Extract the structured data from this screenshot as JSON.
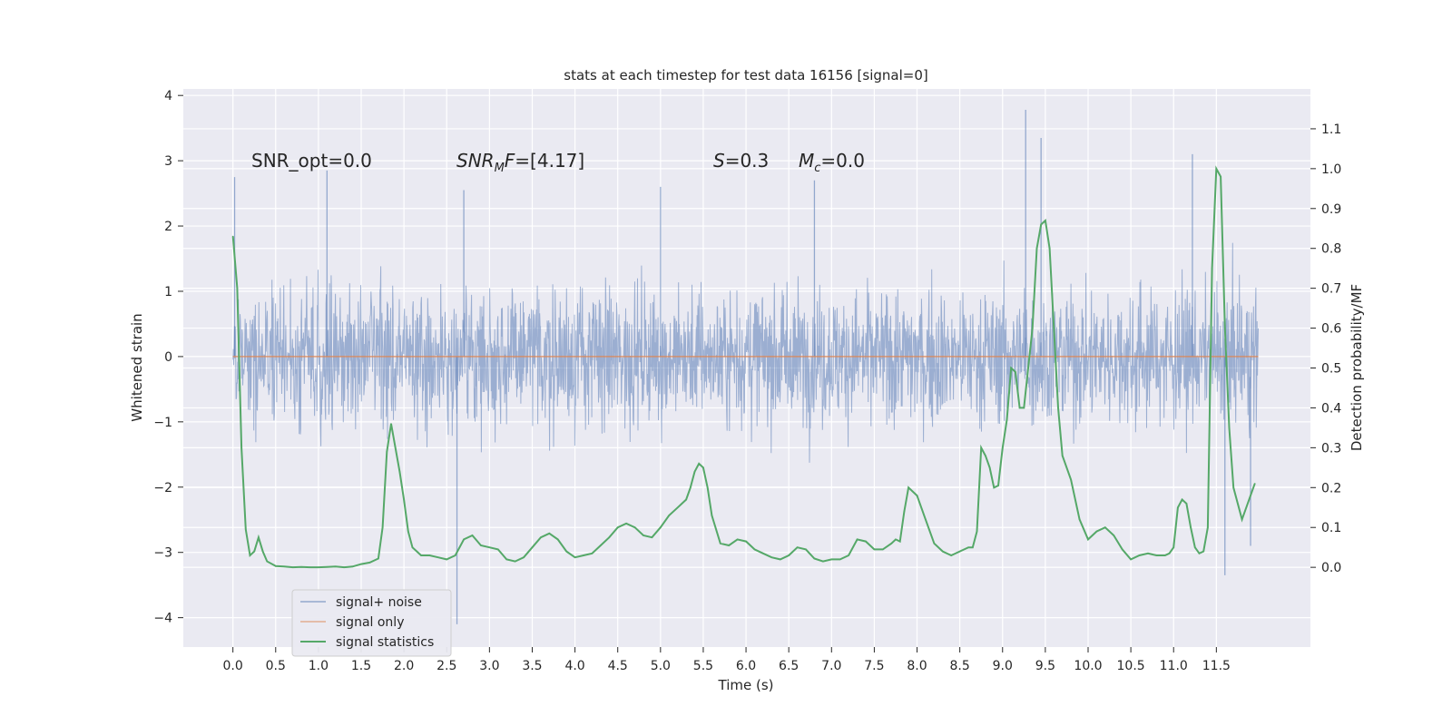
{
  "chart_data": {
    "type": "line",
    "title": "stats at each timestep for test data 16156 [signal=0]",
    "xlabel": "Time (s)",
    "ylabel_left": "Whitened strain",
    "ylabel_right": "Detection probability/MF",
    "xlim": [
      -0.58,
      12.6
    ],
    "ylim_left": [
      -4.45,
      4.1
    ],
    "ylim_right": [
      -0.2,
      1.2
    ],
    "x_ticks": [
      "0.0",
      "0.5",
      "1.0",
      "1.5",
      "2.0",
      "2.5",
      "3.0",
      "3.5",
      "4.0",
      "4.5",
      "5.0",
      "5.5",
      "6.0",
      "6.5",
      "7.0",
      "7.5",
      "8.0",
      "8.5",
      "9.0",
      "9.5",
      "10.0",
      "10.5",
      "11.0",
      "11.5"
    ],
    "y_ticks_left": [
      "4",
      "3",
      "2",
      "1",
      "0",
      "−1",
      "−2",
      "−3",
      "−4"
    ],
    "y_ticks_right": [
      "1.1",
      "1.0",
      "0.9",
      "0.8",
      "0.7",
      "0.6",
      "0.5",
      "0.4",
      "0.3",
      "0.2",
      "0.1",
      "0.0"
    ],
    "annotations": {
      "snr_opt": "SNR_opt=0.0",
      "snr_mf_italic": "SNR",
      "snr_mf_sub": "M",
      "snr_mf_f": "F",
      "snr_mf_value": "=[4.17]",
      "s_italic": "S",
      "s_value": "=0.3",
      "mc_italic": "M",
      "mc_sub": "c",
      "mc_value": "=0.0"
    },
    "legend": {
      "placement": "lower-left",
      "entries": [
        "signal+ noise",
        "signal only",
        "signal statistics"
      ]
    },
    "series": [
      {
        "name": "signal+ noise",
        "color": "#4c72b0",
        "axis": "left",
        "description_range": [
          -4.1,
          3.8
        ],
        "outlier_peaks": [
          {
            "t": 0.02,
            "v": 2.75
          },
          {
            "t": 1.1,
            "v": 2.85
          },
          {
            "t": 2.62,
            "v": -4.1
          },
          {
            "t": 2.7,
            "v": 2.55
          },
          {
            "t": 5.0,
            "v": 2.6
          },
          {
            "t": 6.8,
            "v": 2.7
          },
          {
            "t": 9.27,
            "v": 3.78
          },
          {
            "t": 9.45,
            "v": 3.35
          },
          {
            "t": 11.22,
            "v": 3.1
          },
          {
            "t": 11.6,
            "v": -3.35
          },
          {
            "t": 11.9,
            "v": -2.9
          }
        ]
      },
      {
        "name": "signal only",
        "color": "#dd8452",
        "axis": "left",
        "x": [
          0.0,
          11.99
        ],
        "y": [
          0.0,
          0.0
        ]
      },
      {
        "name": "signal statistics",
        "color": "#55a868",
        "axis": "right",
        "x": [
          0.0,
          0.05,
          0.1,
          0.15,
          0.2,
          0.25,
          0.3,
          0.35,
          0.4,
          0.5,
          0.6,
          0.7,
          0.8,
          0.9,
          1.0,
          1.1,
          1.2,
          1.3,
          1.4,
          1.5,
          1.6,
          1.7,
          1.75,
          1.8,
          1.85,
          1.9,
          1.95,
          2.0,
          2.05,
          2.1,
          2.15,
          2.2,
          2.3,
          2.4,
          2.5,
          2.6,
          2.7,
          2.8,
          2.9,
          3.0,
          3.1,
          3.2,
          3.3,
          3.4,
          3.5,
          3.6,
          3.7,
          3.8,
          3.9,
          4.0,
          4.1,
          4.2,
          4.3,
          4.4,
          4.5,
          4.6,
          4.7,
          4.8,
          4.9,
          5.0,
          5.1,
          5.2,
          5.3,
          5.35,
          5.4,
          5.45,
          5.5,
          5.55,
          5.6,
          5.7,
          5.8,
          5.9,
          6.0,
          6.1,
          6.2,
          6.3,
          6.4,
          6.5,
          6.6,
          6.7,
          6.8,
          6.9,
          7.0,
          7.1,
          7.2,
          7.3,
          7.4,
          7.5,
          7.6,
          7.7,
          7.75,
          7.8,
          7.85,
          7.9,
          8.0,
          8.1,
          8.2,
          8.3,
          8.4,
          8.5,
          8.6,
          8.65,
          8.7,
          8.75,
          8.8,
          8.85,
          8.9,
          8.95,
          9.0,
          9.05,
          9.1,
          9.15,
          9.2,
          9.25,
          9.3,
          9.35,
          9.4,
          9.45,
          9.5,
          9.55,
          9.6,
          9.65,
          9.7,
          9.8,
          9.9,
          10.0,
          10.1,
          10.2,
          10.3,
          10.4,
          10.5,
          10.6,
          10.7,
          10.8,
          10.9,
          10.95,
          11.0,
          11.05,
          11.1,
          11.15,
          11.2,
          11.25,
          11.3,
          11.35,
          11.4,
          11.45,
          11.5,
          11.55,
          11.6,
          11.65,
          11.7,
          11.8,
          11.9,
          11.95
        ],
        "y": [
          0.83,
          0.7,
          0.3,
          0.095,
          0.03,
          0.04,
          0.075,
          0.04,
          0.015,
          0.003,
          0.002,
          0.0,
          0.001,
          0.0,
          0.0,
          0.001,
          0.002,
          0.0,
          0.002,
          0.008,
          0.012,
          0.022,
          0.1,
          0.29,
          0.36,
          0.3,
          0.24,
          0.17,
          0.09,
          0.05,
          0.04,
          0.03,
          0.03,
          0.025,
          0.02,
          0.03,
          0.07,
          0.08,
          0.055,
          0.05,
          0.045,
          0.02,
          0.015,
          0.025,
          0.05,
          0.075,
          0.085,
          0.07,
          0.04,
          0.025,
          0.03,
          0.035,
          0.055,
          0.075,
          0.1,
          0.11,
          0.1,
          0.08,
          0.075,
          0.1,
          0.13,
          0.15,
          0.17,
          0.2,
          0.24,
          0.26,
          0.25,
          0.2,
          0.13,
          0.06,
          0.055,
          0.07,
          0.065,
          0.045,
          0.035,
          0.025,
          0.02,
          0.03,
          0.05,
          0.045,
          0.022,
          0.015,
          0.02,
          0.02,
          0.03,
          0.07,
          0.065,
          0.045,
          0.045,
          0.06,
          0.07,
          0.065,
          0.14,
          0.2,
          0.18,
          0.12,
          0.06,
          0.04,
          0.03,
          0.04,
          0.05,
          0.05,
          0.09,
          0.3,
          0.28,
          0.25,
          0.2,
          0.205,
          0.3,
          0.37,
          0.5,
          0.49,
          0.4,
          0.4,
          0.5,
          0.6,
          0.8,
          0.86,
          0.87,
          0.8,
          0.6,
          0.4,
          0.28,
          0.22,
          0.12,
          0.07,
          0.09,
          0.1,
          0.08,
          0.045,
          0.02,
          0.03,
          0.035,
          0.03,
          0.03,
          0.035,
          0.05,
          0.15,
          0.17,
          0.16,
          0.1,
          0.05,
          0.035,
          0.04,
          0.1,
          0.75,
          1.0,
          0.98,
          0.6,
          0.35,
          0.2,
          0.12,
          0.18,
          0.21
        ]
      }
    ]
  }
}
